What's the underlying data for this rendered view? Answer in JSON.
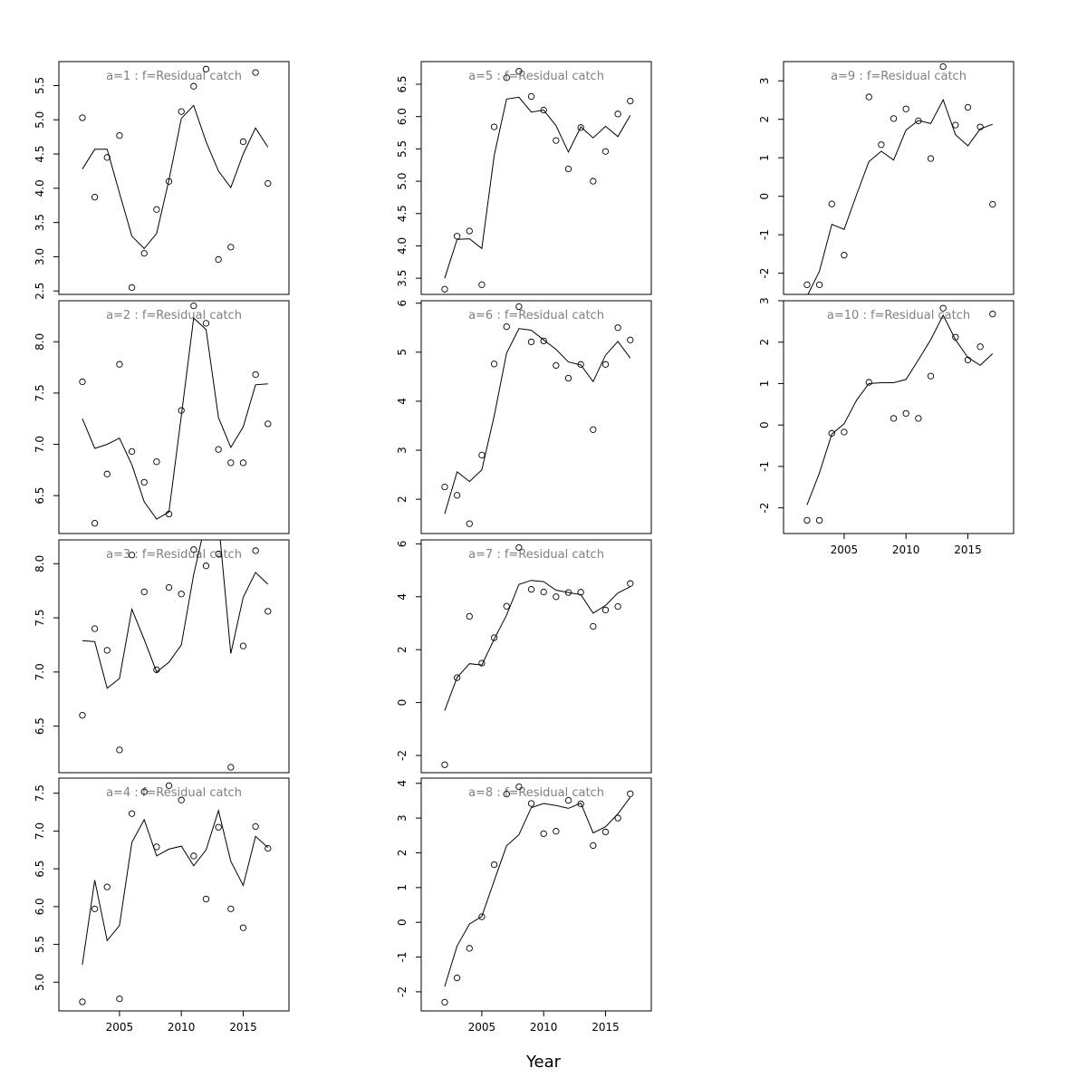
{
  "chart_data": {
    "type": "scatter",
    "title": "",
    "xlabel": "Year",
    "ylabel": "",
    "x": [
      2002,
      2003,
      2004,
      2005,
      2006,
      2007,
      2008,
      2009,
      2010,
      2011,
      2012,
      2013,
      2014,
      2015,
      2016,
      2017
    ],
    "xlim": [
      2000.1,
      2018.7
    ],
    "xticks": [
      2005,
      2010,
      2015
    ],
    "grid": false,
    "legend": "none",
    "panels": [
      {
        "title": "a=1  :  f=Residual catch",
        "ylim": [
          2.45,
          5.85
        ],
        "yticks": [
          2.5,
          3.0,
          3.5,
          4.0,
          4.5,
          5.0,
          5.5
        ],
        "yticklabels": [
          "2.5",
          "3.0",
          "3.5",
          "4.0",
          "4.5",
          "5.0",
          "5.5"
        ],
        "points": [
          5.03,
          3.87,
          4.45,
          4.77,
          2.55,
          3.05,
          3.69,
          4.1,
          5.12,
          5.49,
          5.74,
          2.96,
          3.14,
          4.68,
          5.69,
          4.07
        ],
        "fitted": [
          4.28,
          4.57,
          4.57,
          3.93,
          3.3,
          3.12,
          3.34,
          4.12,
          5.02,
          5.21,
          4.68,
          4.25,
          4.01,
          4.5,
          4.88,
          4.6
        ]
      },
      {
        "title": "a=2  :  f=Residual catch",
        "ylim": [
          6.13,
          8.4
        ],
        "yticks": [
          6.5,
          7.0,
          7.5,
          8.0
        ],
        "yticklabels": [
          "6.5",
          "7.0",
          "7.5",
          "8.0"
        ],
        "points": [
          7.61,
          6.23,
          6.71,
          7.78,
          6.93,
          6.63,
          6.83,
          6.32,
          7.33,
          8.35,
          8.18,
          6.95,
          6.82,
          6.82,
          7.68,
          7.2
        ],
        "fitted": [
          7.25,
          6.96,
          7.0,
          7.06,
          6.8,
          6.44,
          6.27,
          6.34,
          7.28,
          8.23,
          8.12,
          7.26,
          6.97,
          7.17,
          7.58,
          7.59
        ]
      },
      {
        "title": "a=3  :  f=Residual catch",
        "ylim": [
          6.07,
          8.22
        ],
        "yticks": [
          6.5,
          7.0,
          7.5,
          8.0
        ],
        "yticklabels": [
          "6.5",
          "7.0",
          "7.5",
          "8.0"
        ],
        "points": [
          6.6,
          7.4,
          7.2,
          6.28,
          8.08,
          7.74,
          7.02,
          7.78,
          7.72,
          8.13,
          7.98,
          8.09,
          6.12,
          7.24,
          8.12,
          7.56
        ],
        "fitted": [
          7.29,
          7.28,
          6.85,
          6.94,
          7.58,
          7.3,
          7.0,
          7.09,
          7.25,
          7.9,
          8.4,
          8.4,
          7.17,
          7.69,
          7.92,
          7.81
        ]
      },
      {
        "title": "a=4  :  f=Residual catch",
        "ylim": [
          4.62,
          7.7
        ],
        "yticks": [
          5.0,
          5.5,
          6.0,
          6.5,
          7.0,
          7.5
        ],
        "yticklabels": [
          "5.0",
          "5.5",
          "6.0",
          "6.5",
          "7.0",
          "7.5"
        ],
        "points": [
          4.74,
          5.97,
          6.26,
          4.78,
          7.23,
          7.52,
          6.79,
          7.6,
          7.41,
          6.67,
          6.1,
          7.05,
          5.97,
          5.72,
          7.06,
          6.77
        ],
        "fitted": [
          5.23,
          6.35,
          5.55,
          5.75,
          6.85,
          7.15,
          6.67,
          6.76,
          6.8,
          6.54,
          6.75,
          7.27,
          6.6,
          6.28,
          6.93,
          6.78
        ]
      },
      {
        "title": "a=5  :  f=Residual catch",
        "ylim": [
          3.25,
          6.85
        ],
        "yticks": [
          3.5,
          4.0,
          4.5,
          5.0,
          5.5,
          6.0,
          6.5
        ],
        "yticklabels": [
          "3.5",
          "4.0",
          "4.5",
          "5.0",
          "5.5",
          "6.0",
          "6.5"
        ],
        "points": [
          3.33,
          4.15,
          4.23,
          3.4,
          5.84,
          6.6,
          6.7,
          6.31,
          6.1,
          5.63,
          5.19,
          5.83,
          5.0,
          5.46,
          6.04,
          6.24
        ],
        "fitted": [
          3.5,
          4.1,
          4.11,
          3.96,
          5.4,
          6.27,
          6.3,
          6.07,
          6.1,
          5.86,
          5.45,
          5.84,
          5.67,
          5.85,
          5.69,
          6.02
        ]
      },
      {
        "title": "a=6  :  f=Residual catch",
        "ylim": [
          1.3,
          6.05
        ],
        "yticks": [
          2,
          3,
          4,
          5,
          6
        ],
        "yticklabels": [
          "2",
          "3",
          "4",
          "5",
          "6"
        ],
        "points": [
          2.25,
          2.08,
          1.5,
          2.9,
          4.76,
          5.52,
          5.93,
          5.21,
          5.23,
          4.73,
          4.47,
          4.75,
          3.42,
          4.75,
          5.5,
          5.25
        ],
        "fitted": [
          1.7,
          2.56,
          2.36,
          2.6,
          3.7,
          4.98,
          5.48,
          5.45,
          5.25,
          5.06,
          4.8,
          4.74,
          4.4,
          4.94,
          5.22,
          4.88
        ]
      },
      {
        "title": "a=7  :  f=Residual catch",
        "ylim": [
          -2.65,
          6.15
        ],
        "yticks": [
          -2,
          0,
          2,
          4,
          6
        ],
        "yticklabels": [
          "-2",
          "0",
          "2",
          "4",
          "6"
        ],
        "points": [
          -2.35,
          0.94,
          3.26,
          1.49,
          2.45,
          3.64,
          5.86,
          4.28,
          4.18,
          4.0,
          4.16,
          4.17,
          2.88,
          3.5,
          3.63,
          4.5
        ],
        "fitted": [
          -0.3,
          0.95,
          1.47,
          1.42,
          2.4,
          3.3,
          4.47,
          4.62,
          4.57,
          4.25,
          4.16,
          4.08,
          3.38,
          3.67,
          4.14,
          4.38
        ]
      },
      {
        "title": "a=8  :  f=Residual catch",
        "ylim": [
          -2.55,
          4.15
        ],
        "yticks": [
          -2,
          -1,
          0,
          1,
          2,
          3,
          4
        ],
        "yticklabels": [
          "-2",
          "-1",
          "0",
          "1",
          "2",
          "3",
          "4"
        ],
        "points": [
          -2.3,
          -1.6,
          -0.75,
          0.16,
          1.66,
          3.69,
          3.9,
          3.42,
          2.55,
          2.62,
          3.51,
          3.41,
          2.21,
          2.6,
          3.0,
          3.7
        ],
        "fitted": [
          -1.85,
          -0.68,
          -0.05,
          0.17,
          1.2,
          2.2,
          2.52,
          3.3,
          3.42,
          3.36,
          3.28,
          3.43,
          2.57,
          2.75,
          3.12,
          3.6
        ]
      },
      {
        "title": "a=9  :  f=Residual catch",
        "ylim": [
          -2.55,
          3.5
        ],
        "yticks": [
          -2,
          -1,
          0,
          1,
          2,
          3
        ],
        "yticklabels": [
          "-2",
          "-1",
          "0",
          "1",
          "2",
          "3"
        ],
        "points": [
          -2.3,
          -2.3,
          -0.2,
          -1.53,
          null,
          2.58,
          1.34,
          2.02,
          2.27,
          1.96,
          0.98,
          3.37,
          1.85,
          2.31,
          1.8,
          -0.21
        ],
        "fitted": [
          -2.6,
          -1.95,
          -0.73,
          -0.86,
          0.04,
          0.9,
          1.17,
          0.94,
          1.72,
          1.97,
          1.89,
          2.51,
          1.6,
          1.31,
          1.75,
          1.87
        ]
      },
      {
        "title": "a=10  :  f=Residual catch",
        "ylim": [
          -2.62,
          3.0
        ],
        "yticks": [
          -2,
          -1,
          0,
          1,
          2,
          3
        ],
        "yticklabels": [
          "-2",
          "-1",
          "0",
          "1",
          "2",
          "3"
        ],
        "points": [
          -2.3,
          -2.3,
          -0.2,
          -0.17,
          null,
          1.03,
          null,
          0.16,
          0.28,
          0.16,
          1.18,
          2.82,
          2.12,
          1.57,
          1.89,
          2.68
        ],
        "fitted": [
          -1.93,
          -1.16,
          -0.22,
          0.03,
          0.6,
          1.0,
          1.02,
          1.02,
          1.1,
          1.57,
          2.06,
          2.65,
          2.06,
          1.63,
          1.44,
          1.72
        ]
      }
    ]
  }
}
